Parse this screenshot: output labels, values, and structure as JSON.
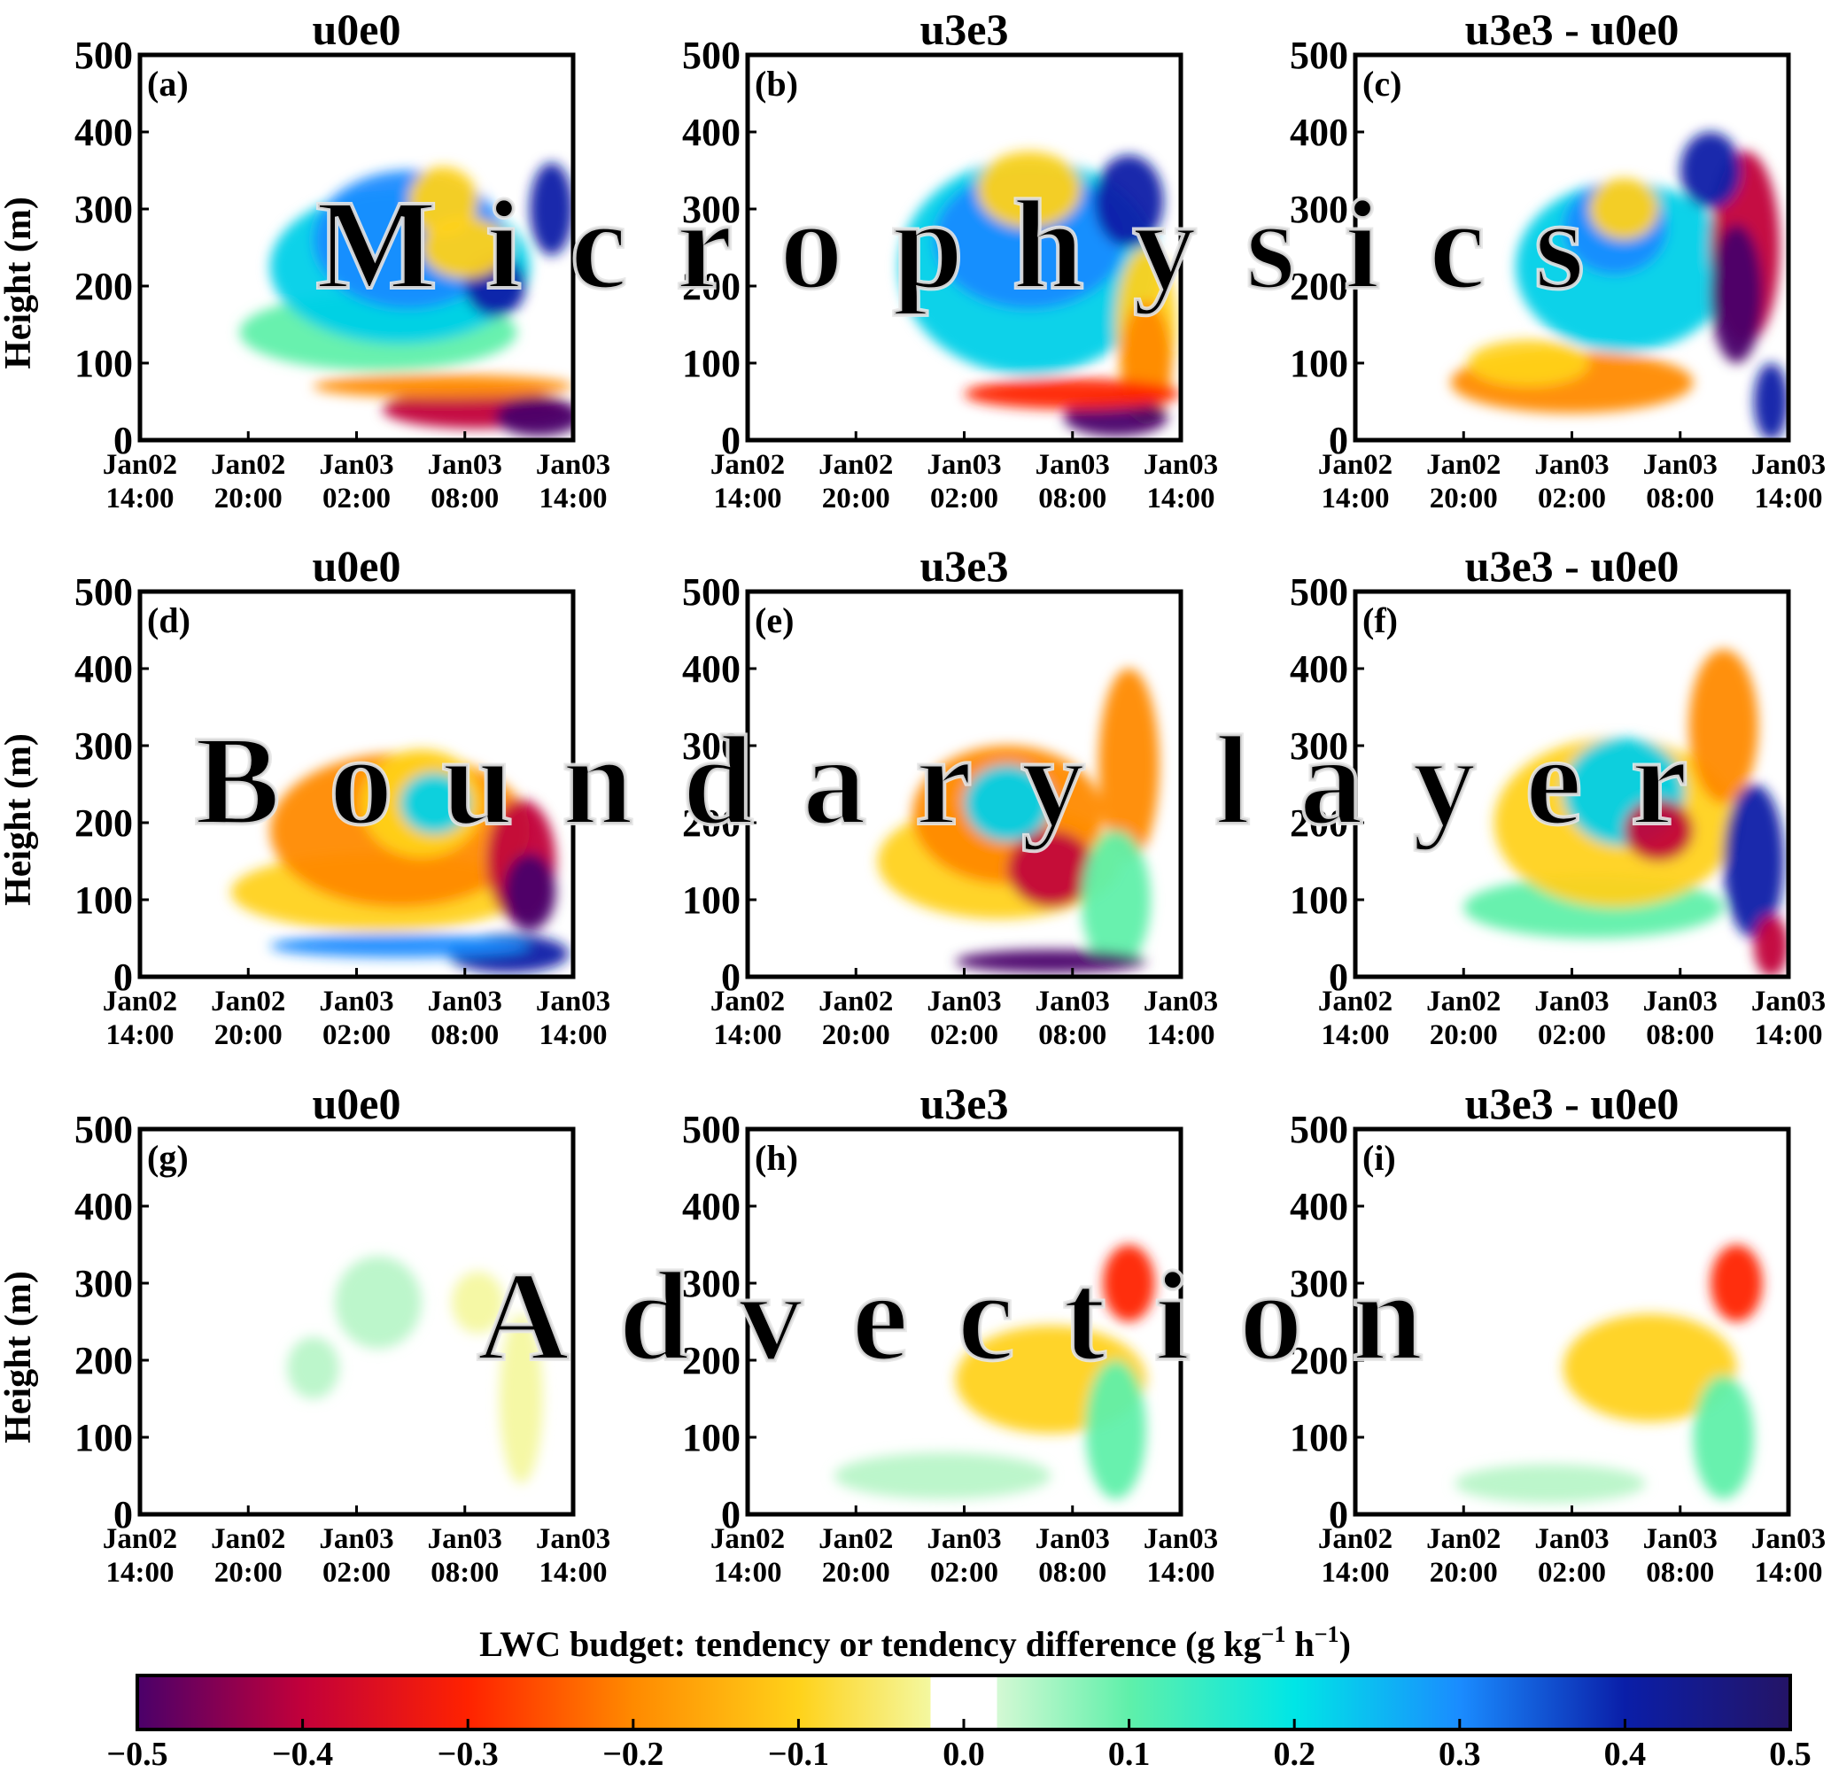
{
  "watermarks": {
    "row1": "Microphysics",
    "row2": "Boundary layer",
    "row3": "Advection"
  },
  "colorbar": {
    "title": "LWC budget: tendency or tendency difference (g kg",
    "title_exp1": "−1",
    "title_mid": " h",
    "title_exp2": "−1",
    "title_end": ")",
    "ticks": [
      "−0.5",
      "−0.4",
      "−0.3",
      "−0.2",
      "−0.1",
      "0.0",
      "0.1",
      "0.2",
      "0.3",
      "0.4",
      "0.5"
    ],
    "colors": [
      "#4a006a",
      "#c2003a",
      "#ff2200",
      "#ff8a00",
      "#ffd21a",
      "#f4f8a0",
      "#ffffff",
      "#d4f9d4",
      "#5ff0aa",
      "#00e6e6",
      "#1a8cff",
      "#0a1ea8",
      "#241466"
    ]
  },
  "chart_data": [
    {
      "type": "heatmap",
      "panel": "(a)",
      "title": "u0e0",
      "row_process": "Microphysics",
      "ylabel": "Height (m)",
      "ylim": [
        0,
        500
      ],
      "yticks": [
        "0",
        "100",
        "200",
        "300",
        "400",
        "500"
      ],
      "xticks": [
        [
          "Jan02",
          "14:00"
        ],
        [
          "Jan02",
          "20:00"
        ],
        [
          "Jan03",
          "02:00"
        ],
        [
          "Jan03",
          "08:00"
        ],
        [
          "Jan03",
          "14:00"
        ]
      ],
      "colorbar_range": [
        -0.5,
        0.5
      ]
    },
    {
      "type": "heatmap",
      "panel": "(b)",
      "title": "u3e3",
      "row_process": "Microphysics",
      "ylabel": "",
      "ylim": [
        0,
        500
      ],
      "yticks": [
        "0",
        "100",
        "200",
        "300",
        "400",
        "500"
      ],
      "xticks": [
        [
          "Jan02",
          "14:00"
        ],
        [
          "Jan02",
          "20:00"
        ],
        [
          "Jan03",
          "02:00"
        ],
        [
          "Jan03",
          "08:00"
        ],
        [
          "Jan03",
          "14:00"
        ]
      ],
      "colorbar_range": [
        -0.5,
        0.5
      ]
    },
    {
      "type": "heatmap",
      "panel": "(c)",
      "title": "u3e3 - u0e0",
      "row_process": "Microphysics",
      "ylabel": "",
      "ylim": [
        0,
        500
      ],
      "yticks": [
        "0",
        "100",
        "200",
        "300",
        "400",
        "500"
      ],
      "xticks": [
        [
          "Jan02",
          "14:00"
        ],
        [
          "Jan02",
          "20:00"
        ],
        [
          "Jan03",
          "02:00"
        ],
        [
          "Jan03",
          "08:00"
        ],
        [
          "Jan03",
          "14:00"
        ]
      ],
      "colorbar_range": [
        -0.5,
        0.5
      ]
    },
    {
      "type": "heatmap",
      "panel": "(d)",
      "title": "u0e0",
      "row_process": "Boundary layer",
      "ylabel": "Height (m)",
      "ylim": [
        0,
        500
      ],
      "yticks": [
        "0",
        "100",
        "200",
        "300",
        "400",
        "500"
      ],
      "xticks": [
        [
          "Jan02",
          "14:00"
        ],
        [
          "Jan02",
          "20:00"
        ],
        [
          "Jan03",
          "02:00"
        ],
        [
          "Jan03",
          "08:00"
        ],
        [
          "Jan03",
          "14:00"
        ]
      ],
      "colorbar_range": [
        -0.5,
        0.5
      ]
    },
    {
      "type": "heatmap",
      "panel": "(e)",
      "title": "u3e3",
      "row_process": "Boundary layer",
      "ylabel": "",
      "ylim": [
        0,
        500
      ],
      "yticks": [
        "0",
        "100",
        "200",
        "300",
        "400",
        "500"
      ],
      "xticks": [
        [
          "Jan02",
          "14:00"
        ],
        [
          "Jan02",
          "20:00"
        ],
        [
          "Jan03",
          "02:00"
        ],
        [
          "Jan03",
          "08:00"
        ],
        [
          "Jan03",
          "14:00"
        ]
      ],
      "colorbar_range": [
        -0.5,
        0.5
      ]
    },
    {
      "type": "heatmap",
      "panel": "(f)",
      "title": "u3e3 - u0e0",
      "row_process": "Boundary layer",
      "ylabel": "",
      "ylim": [
        0,
        500
      ],
      "yticks": [
        "0",
        "100",
        "200",
        "300",
        "400",
        "500"
      ],
      "xticks": [
        [
          "Jan02",
          "14:00"
        ],
        [
          "Jan02",
          "20:00"
        ],
        [
          "Jan03",
          "02:00"
        ],
        [
          "Jan03",
          "08:00"
        ],
        [
          "Jan03",
          "14:00"
        ]
      ],
      "colorbar_range": [
        -0.5,
        0.5
      ]
    },
    {
      "type": "heatmap",
      "panel": "(g)",
      "title": "u0e0",
      "row_process": "Advection",
      "ylabel": "Height (m)",
      "ylim": [
        0,
        500
      ],
      "yticks": [
        "0",
        "100",
        "200",
        "300",
        "400",
        "500"
      ],
      "xticks": [
        [
          "Jan02",
          "14:00"
        ],
        [
          "Jan02",
          "20:00"
        ],
        [
          "Jan03",
          "02:00"
        ],
        [
          "Jan03",
          "08:00"
        ],
        [
          "Jan03",
          "14:00"
        ]
      ],
      "colorbar_range": [
        -0.5,
        0.5
      ]
    },
    {
      "type": "heatmap",
      "panel": "(h)",
      "title": "u3e3",
      "row_process": "Advection",
      "ylabel": "",
      "ylim": [
        0,
        500
      ],
      "yticks": [
        "0",
        "100",
        "200",
        "300",
        "400",
        "500"
      ],
      "xticks": [
        [
          "Jan02",
          "14:00"
        ],
        [
          "Jan02",
          "20:00"
        ],
        [
          "Jan03",
          "02:00"
        ],
        [
          "Jan03",
          "08:00"
        ],
        [
          "Jan03",
          "14:00"
        ]
      ],
      "colorbar_range": [
        -0.5,
        0.5
      ]
    },
    {
      "type": "heatmap",
      "panel": "(i)",
      "title": "u3e3 - u0e0",
      "row_process": "Advection",
      "ylabel": "",
      "ylim": [
        0,
        500
      ],
      "yticks": [
        "0",
        "100",
        "200",
        "300",
        "400",
        "500"
      ],
      "xticks": [
        [
          "Jan02",
          "14:00"
        ],
        [
          "Jan02",
          "20:00"
        ],
        [
          "Jan03",
          "02:00"
        ],
        [
          "Jan03",
          "08:00"
        ],
        [
          "Jan03",
          "14:00"
        ]
      ],
      "colorbar_range": [
        -0.5,
        0.5
      ]
    }
  ]
}
